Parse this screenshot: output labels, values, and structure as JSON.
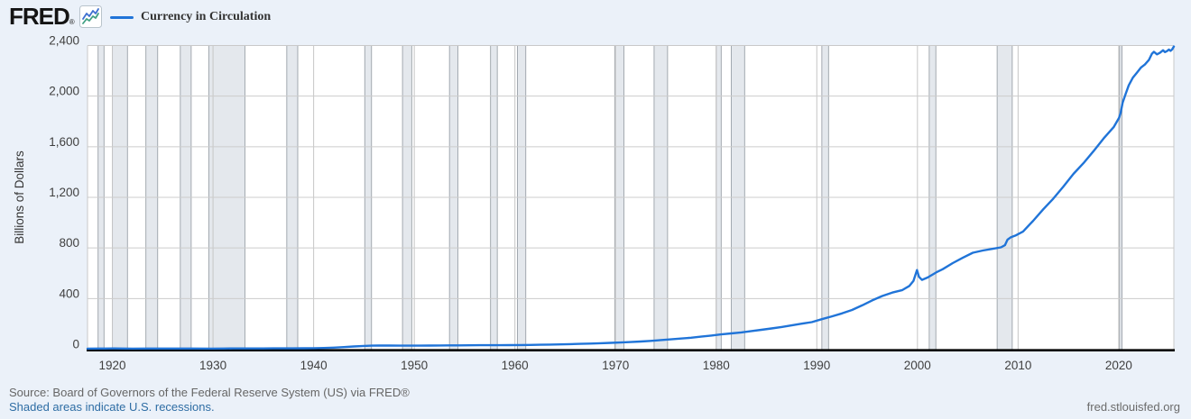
{
  "header": {
    "logo": "FRED",
    "registered": "®",
    "legend_label": "Currency in Circulation"
  },
  "footer": {
    "source": "Source: Board of Governors of the Federal Reserve System (US) via FRED®",
    "note": "Shaded areas indicate U.S. recessions.",
    "site": "fred.stlouisfed.org"
  },
  "colors": {
    "background": "#ebf1f9",
    "plot_bg": "#ffffff",
    "line": "#2074d8",
    "grid": "#cccccc",
    "vgrid": "#c6c6c6",
    "border": "#c9c9c9",
    "recession_fill": "#e4e8ed",
    "recession_edge": "#9aa1a8",
    "axis": "#000000",
    "tick_text": "#404040",
    "ylabel_text": "#333333",
    "icon_blue": "#3d6fd0",
    "icon_green": "#41a083"
  },
  "chart_data": {
    "type": "line",
    "title": "Currency in Circulation",
    "ylabel": "Billions of Dollars",
    "xlabel": "",
    "grid": true,
    "legend_position": "top-left",
    "xlim": [
      1917.53,
      2025.48
    ],
    "ylim": [
      0,
      2400
    ],
    "yticks": [
      {
        "v": 0,
        "label": "0"
      },
      {
        "v": 400,
        "label": "400"
      },
      {
        "v": 800,
        "label": "800"
      },
      {
        "v": 1200,
        "label": "1,200"
      },
      {
        "v": 1600,
        "label": "1,600"
      },
      {
        "v": 2000,
        "label": "2,000"
      },
      {
        "v": 2400,
        "label": "2,400"
      }
    ],
    "xticks": [
      {
        "v": 1920,
        "label": "1920"
      },
      {
        "v": 1930,
        "label": "1930"
      },
      {
        "v": 1940,
        "label": "1940"
      },
      {
        "v": 1950,
        "label": "1950"
      },
      {
        "v": 1960,
        "label": "1960"
      },
      {
        "v": 1970,
        "label": "1970"
      },
      {
        "v": 1980,
        "label": "1980"
      },
      {
        "v": 1990,
        "label": "1990"
      },
      {
        "v": 2000,
        "label": "2000"
      },
      {
        "v": 2010,
        "label": "2010"
      },
      {
        "v": 2020,
        "label": "2020"
      }
    ],
    "recessions": [
      [
        1918.58,
        1919.17
      ],
      [
        1920.0,
        1921.5
      ],
      [
        1923.33,
        1924.5
      ],
      [
        1926.75,
        1927.83
      ],
      [
        1929.58,
        1933.17
      ],
      [
        1937.33,
        1938.42
      ],
      [
        1945.08,
        1945.75
      ],
      [
        1948.83,
        1949.75
      ],
      [
        1953.5,
        1954.33
      ],
      [
        1957.58,
        1958.25
      ],
      [
        1960.25,
        1961.08
      ],
      [
        1969.92,
        1970.83
      ],
      [
        1973.83,
        1975.17
      ],
      [
        1980.0,
        1980.5
      ],
      [
        1981.5,
        1982.83
      ],
      [
        1990.5,
        1991.17
      ],
      [
        2001.17,
        2001.83
      ],
      [
        2007.92,
        2009.42
      ],
      [
        2020.08,
        2020.33
      ]
    ],
    "series": [
      {
        "name": "Currency in Circulation",
        "units": "Billions of Dollars",
        "color": "#2074d8",
        "points": [
          [
            1917.53,
            4.0
          ],
          [
            1918.6,
            4.7
          ],
          [
            1919.2,
            4.9
          ],
          [
            1920.1,
            5.4
          ],
          [
            1921,
            4.9
          ],
          [
            1922,
            4.4
          ],
          [
            1923.5,
            4.9
          ],
          [
            1925,
            4.8
          ],
          [
            1926,
            4.9
          ],
          [
            1928,
            4.7
          ],
          [
            1929.8,
            4.5
          ],
          [
            1931,
            4.9
          ],
          [
            1932,
            5.4
          ],
          [
            1933.2,
            5.9
          ],
          [
            1933.8,
            5.4
          ],
          [
            1935,
            5.7
          ],
          [
            1936,
            6.2
          ],
          [
            1937,
            6.5
          ],
          [
            1938,
            6.4
          ],
          [
            1939,
            7.0
          ],
          [
            1940,
            7.8
          ],
          [
            1941,
            9.6
          ],
          [
            1942,
            12.2
          ],
          [
            1943,
            16.3
          ],
          [
            1944,
            21.1
          ],
          [
            1945,
            25.7
          ],
          [
            1945.8,
            28.0
          ],
          [
            1946.5,
            28.4
          ],
          [
            1947.5,
            28.2
          ],
          [
            1948.5,
            28.0
          ],
          [
            1949.5,
            27.5
          ],
          [
            1950.5,
            27.6
          ],
          [
            1951.5,
            28.5
          ],
          [
            1952.5,
            29.3
          ],
          [
            1953.5,
            30.1
          ],
          [
            1954.5,
            30.0
          ],
          [
            1955.5,
            30.6
          ],
          [
            1956.5,
            31.1
          ],
          [
            1957.5,
            31.3
          ],
          [
            1958.5,
            31.6
          ],
          [
            1959.5,
            32.3
          ],
          [
            1960.5,
            32.7
          ],
          [
            1961.5,
            33.3
          ],
          [
            1962.5,
            34.8
          ],
          [
            1963.5,
            36.3
          ],
          [
            1964.5,
            38.0
          ],
          [
            1965.5,
            39.9
          ],
          [
            1966.5,
            42.1
          ],
          [
            1967.5,
            44.2
          ],
          [
            1968.5,
            46.9
          ],
          [
            1969.5,
            49.6
          ],
          [
            1970.5,
            52.6
          ],
          [
            1971.5,
            56.1
          ],
          [
            1972.5,
            60.8
          ],
          [
            1973.5,
            65.8
          ],
          [
            1974.5,
            71.7
          ],
          [
            1975.5,
            77.6
          ],
          [
            1976.5,
            83.7
          ],
          [
            1977.5,
            90.8
          ],
          [
            1978.5,
            99.0
          ],
          [
            1979.5,
            107.8
          ],
          [
            1980.5,
            116.7
          ],
          [
            1981.5,
            124.3
          ],
          [
            1982.5,
            132.5
          ],
          [
            1983.5,
            143.1
          ],
          [
            1984.5,
            153.0
          ],
          [
            1985.5,
            163.7
          ],
          [
            1986.5,
            175.0
          ],
          [
            1987.5,
            187.9
          ],
          [
            1988.5,
            201.5
          ],
          [
            1989.5,
            214.0
          ],
          [
            1990.5,
            237.0
          ],
          [
            1991.5,
            259.0
          ],
          [
            1992.5,
            283.0
          ],
          [
            1993.5,
            310.0
          ],
          [
            1994.5,
            346.0
          ],
          [
            1995.5,
            385.0
          ],
          [
            1996.5,
            420.0
          ],
          [
            1997.5,
            447.0
          ],
          [
            1998.5,
            467.0
          ],
          [
            1999.2,
            500
          ],
          [
            1999.6,
            540
          ],
          [
            1999.95,
            625
          ],
          [
            2000.15,
            572
          ],
          [
            2000.45,
            548
          ],
          [
            2001,
            566
          ],
          [
            2001.9,
            608
          ],
          [
            2002.5,
            632
          ],
          [
            2003.5,
            680
          ],
          [
            2004.5,
            722
          ],
          [
            2005.5,
            762
          ],
          [
            2006.5,
            780
          ],
          [
            2007.5,
            793
          ],
          [
            2008.3,
            805
          ],
          [
            2008.7,
            822
          ],
          [
            2008.95,
            865
          ],
          [
            2009.3,
            885
          ],
          [
            2009.8,
            900
          ],
          [
            2010.5,
            930
          ],
          [
            2011.5,
            1015
          ],
          [
            2012.5,
            1105
          ],
          [
            2013.5,
            1190
          ],
          [
            2014.5,
            1285
          ],
          [
            2015.5,
            1385
          ],
          [
            2016.5,
            1470
          ],
          [
            2017.5,
            1565
          ],
          [
            2018.5,
            1665
          ],
          [
            2019.5,
            1755
          ],
          [
            2020.05,
            1830
          ],
          [
            2020.2,
            1870
          ],
          [
            2020.4,
            1950
          ],
          [
            2020.7,
            2020
          ],
          [
            2021.0,
            2085
          ],
          [
            2021.4,
            2145
          ],
          [
            2021.8,
            2185
          ],
          [
            2022.2,
            2225
          ],
          [
            2022.6,
            2250
          ],
          [
            2023.0,
            2285
          ],
          [
            2023.3,
            2335
          ],
          [
            2023.5,
            2350
          ],
          [
            2023.8,
            2330
          ],
          [
            2024.1,
            2342
          ],
          [
            2024.4,
            2362
          ],
          [
            2024.6,
            2348
          ],
          [
            2024.8,
            2356
          ],
          [
            2025.0,
            2368
          ],
          [
            2025.15,
            2358
          ],
          [
            2025.3,
            2368
          ],
          [
            2025.48,
            2392
          ]
        ]
      }
    ]
  }
}
